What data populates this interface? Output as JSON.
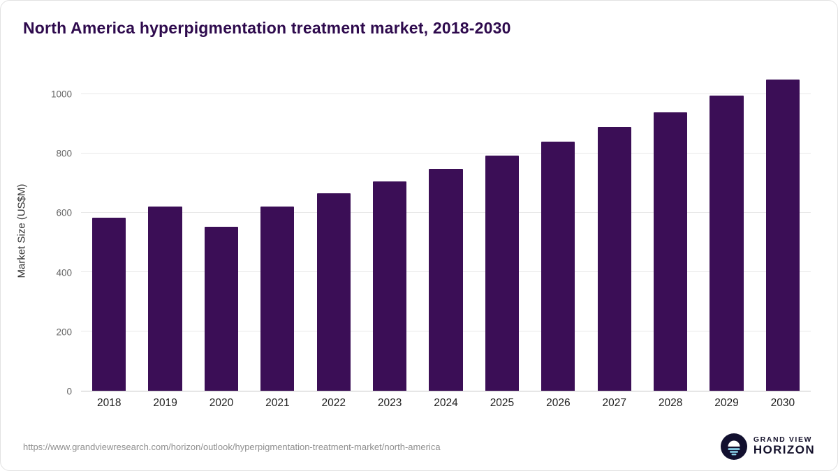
{
  "title": "North America hyperpigmentation treatment market, 2018-2030",
  "chart_data": {
    "type": "bar",
    "title": "North America hyperpigmentation treatment market, 2018-2030",
    "categories": [
      "2018",
      "2019",
      "2020",
      "2021",
      "2022",
      "2023",
      "2024",
      "2025",
      "2026",
      "2027",
      "2028",
      "2029",
      "2030"
    ],
    "values": [
      584,
      622,
      552,
      622,
      666,
      706,
      748,
      793,
      840,
      889,
      940,
      995,
      1050
    ],
    "xlabel": "",
    "ylabel": "Market Size (US$M)",
    "ylim": [
      0,
      1080
    ],
    "yticks": [
      0,
      200,
      400,
      600,
      800,
      1000
    ],
    "grid": true,
    "legend": "none",
    "bar_color": "#3b0e56",
    "title_color": "#2e0a4d"
  },
  "footer": {
    "source_url": "https://www.grandviewresearch.com/horizon/outlook/hyperpigmentation-treatment-market/north-america",
    "logo_icon": "horizon-sun-over-water-icon",
    "logo_top": "GRAND VIEW",
    "logo_bottom": "HORIZON"
  }
}
